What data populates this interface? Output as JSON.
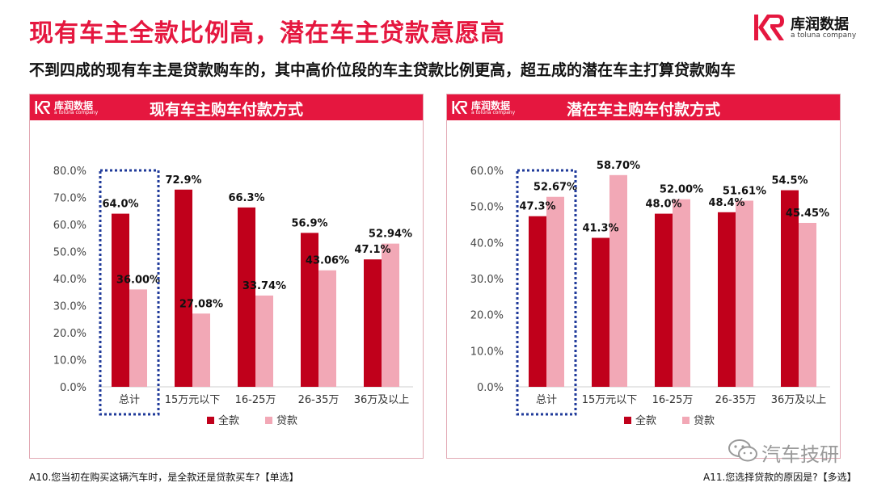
{
  "title": "现有车主全款比例高，潜在车主贷款意愿高",
  "subtitle": "不到四成的现有车主是贷款购车的，其中高价位段的车主贷款比例更高，超五成的潜在车主打算贷款购车",
  "brand": {
    "name": "库润数据",
    "tagline": "a toluna company"
  },
  "panels": [
    {
      "title": "现有车主购车付款方式",
      "footnote": "A10.您当初在购买这辆汽车时，是全款还是贷款买车?【单选】"
    },
    {
      "title": "潜在车主购车付款方式",
      "footnote": "A11.您选择贷款的原因是?【多选】"
    }
  ],
  "watermark": "汽车技研",
  "colors": {
    "accent": "#e5173f",
    "full": "#c0001b",
    "loan": "#f2a8b6",
    "highlight_box": "#1f3a9a"
  },
  "chart_data": [
    {
      "type": "bar",
      "title": "现有车主购车付款方式",
      "categories": [
        "总计",
        "15万元以下",
        "16-25万",
        "26-35万",
        "36万及以上"
      ],
      "ylim": [
        0,
        80
      ],
      "yticks": [
        "0.0%",
        "10.0%",
        "20.0%",
        "30.0%",
        "40.0%",
        "50.0%",
        "60.0%",
        "70.0%",
        "80.0%"
      ],
      "series": [
        {
          "name": "全款",
          "values": [
            64.0,
            72.9,
            66.3,
            56.9,
            47.1
          ],
          "labels": [
            "64.0%",
            "72.9%",
            "66.3%",
            "56.9%",
            "47.1%"
          ]
        },
        {
          "name": "贷款",
          "values": [
            36.0,
            27.08,
            33.74,
            43.06,
            52.94
          ],
          "labels": [
            "36.00%",
            "27.08%",
            "33.74%",
            "43.06%",
            "52.94%"
          ]
        }
      ],
      "highlighted_category": "总计",
      "legend": "bottom"
    },
    {
      "type": "bar",
      "title": "潜在车主购车付款方式",
      "categories": [
        "总计",
        "15万元以下",
        "16-25万",
        "26-35万",
        "36万及以上"
      ],
      "ylim": [
        0,
        60
      ],
      "yticks": [
        "0.0%",
        "10.0%",
        "20.0%",
        "30.0%",
        "40.0%",
        "50.0%",
        "60.0%"
      ],
      "series": [
        {
          "name": "全款",
          "values": [
            47.3,
            41.3,
            48.0,
            48.4,
            54.5
          ],
          "labels": [
            "47.3%",
            "41.3%",
            "48.0%",
            "48.4%",
            "54.5%"
          ]
        },
        {
          "name": "贷款",
          "values": [
            52.67,
            58.7,
            52.0,
            51.61,
            45.45
          ],
          "labels": [
            "52.67%",
            "58.70%",
            "52.00%",
            "51.61%",
            "45.45%"
          ]
        }
      ],
      "highlighted_category": "总计",
      "legend": "bottom"
    }
  ]
}
